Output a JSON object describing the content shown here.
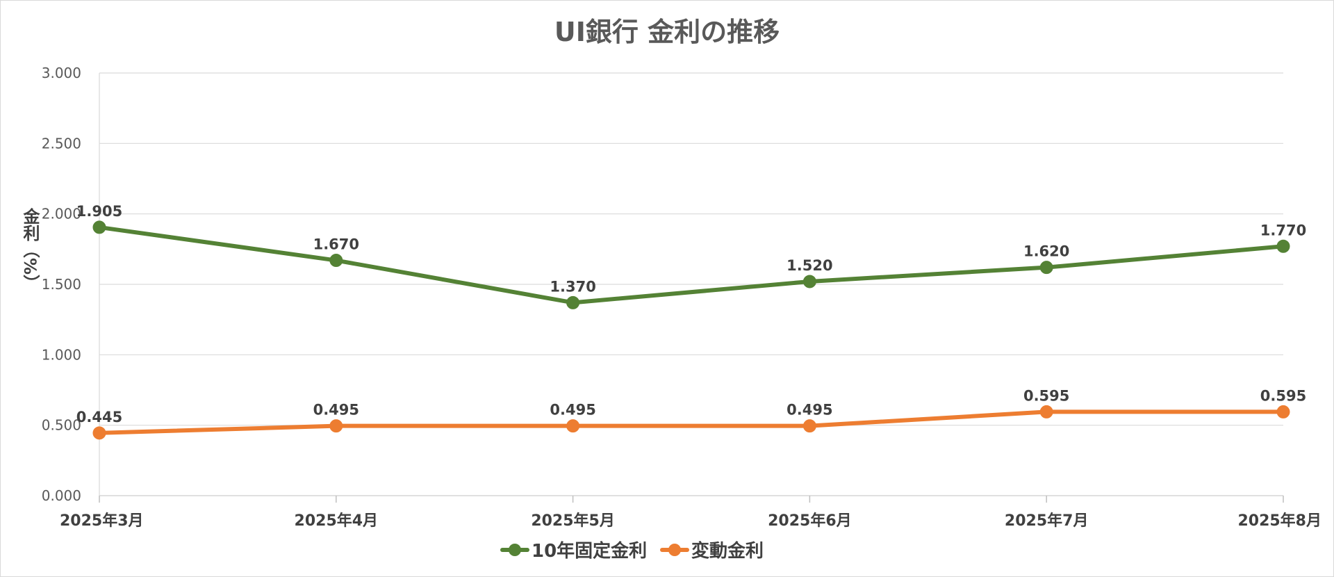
{
  "chart_data": {
    "type": "line",
    "title": "UI銀行 金利の推移",
    "ylabel": "金利（%）",
    "xlabel": "",
    "categories": [
      "2025年3月",
      "2025年4月",
      "2025年5月",
      "2025年6月",
      "2025年7月",
      "2025年8月"
    ],
    "series": [
      {
        "name": "10年固定金利",
        "color": "#548235",
        "values": [
          1.905,
          1.67,
          1.37,
          1.52,
          1.62,
          1.77
        ],
        "labels": [
          "1.905",
          "1.670",
          "1.370",
          "1.520",
          "1.620",
          "1.770"
        ]
      },
      {
        "name": "変動金利",
        "color": "#ED7D31",
        "values": [
          0.445,
          0.495,
          0.495,
          0.495,
          0.595,
          0.595
        ],
        "labels": [
          "0.445",
          "0.495",
          "0.495",
          "0.495",
          "0.595",
          "0.595"
        ]
      }
    ],
    "ylim": [
      0,
      3
    ],
    "yticks": [
      "0.000",
      "0.500",
      "1.000",
      "1.500",
      "2.000",
      "2.500",
      "3.000"
    ],
    "grid": true,
    "legend": "bottom"
  }
}
